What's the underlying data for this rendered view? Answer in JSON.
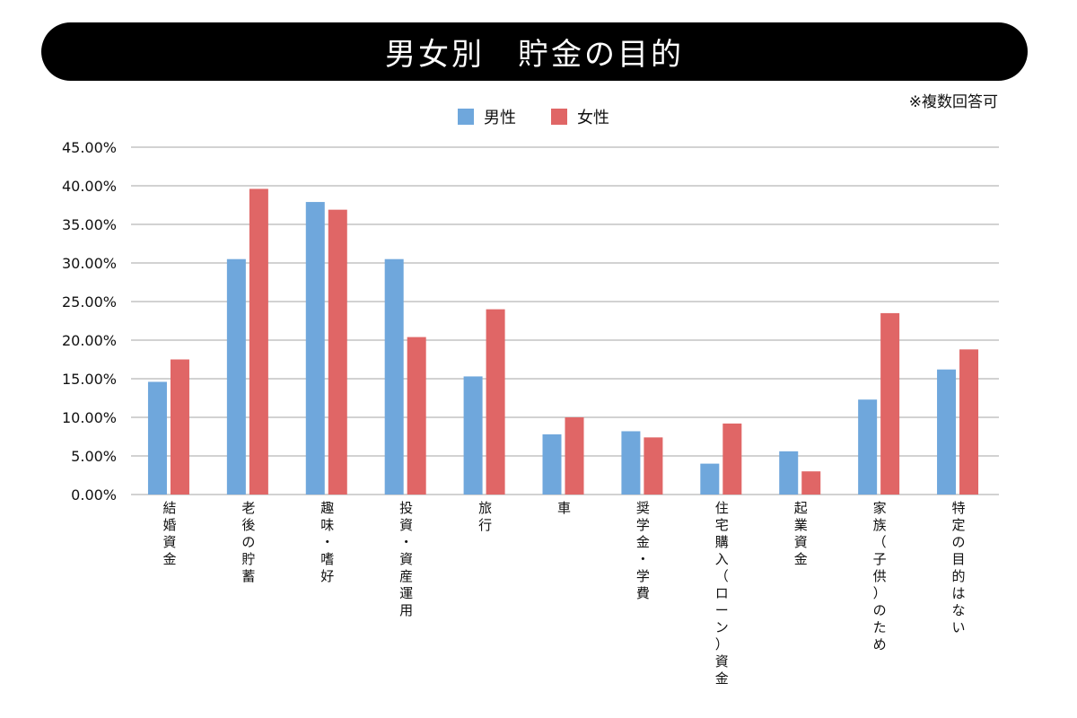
{
  "header": {
    "title": "男女別　貯金の目的",
    "note": "※複数回答可"
  },
  "colors": {
    "male": "#6fa7dc",
    "female": "#e06666",
    "grid": "#a6a6a6",
    "title_bg": "#000000"
  },
  "chart_data": {
    "type": "bar",
    "title": "男女別　貯金の目的",
    "subtitle": "※複数回答可",
    "xlabel": "",
    "ylabel": "",
    "ylim": [
      0,
      45
    ],
    "ytick_step": 5,
    "ytick_labels": [
      "0.00%",
      "5.00%",
      "10.00%",
      "15.00%",
      "20.00%",
      "25.00%",
      "30.00%",
      "35.00%",
      "40.00%",
      "45.00%"
    ],
    "grid": true,
    "legend_position": "top-center",
    "categories": [
      "結婚資金",
      "老後の貯蓄",
      "趣味・嗜好",
      "投資・資産運用",
      "旅行",
      "車",
      "奨学金・学費",
      "住宅購入（ローン）資金",
      "起業資金",
      "家族（子供）のため",
      "特定の目的はない"
    ],
    "series": [
      {
        "name": "男性",
        "color": "#6fa7dc",
        "values": [
          14.6,
          30.5,
          37.9,
          30.5,
          15.3,
          7.8,
          8.2,
          4.0,
          5.6,
          12.3,
          16.2
        ]
      },
      {
        "name": "女性",
        "color": "#e06666",
        "values": [
          17.5,
          39.6,
          36.9,
          20.4,
          24.0,
          10.0,
          7.4,
          9.2,
          3.0,
          23.5,
          18.8
        ]
      }
    ]
  }
}
